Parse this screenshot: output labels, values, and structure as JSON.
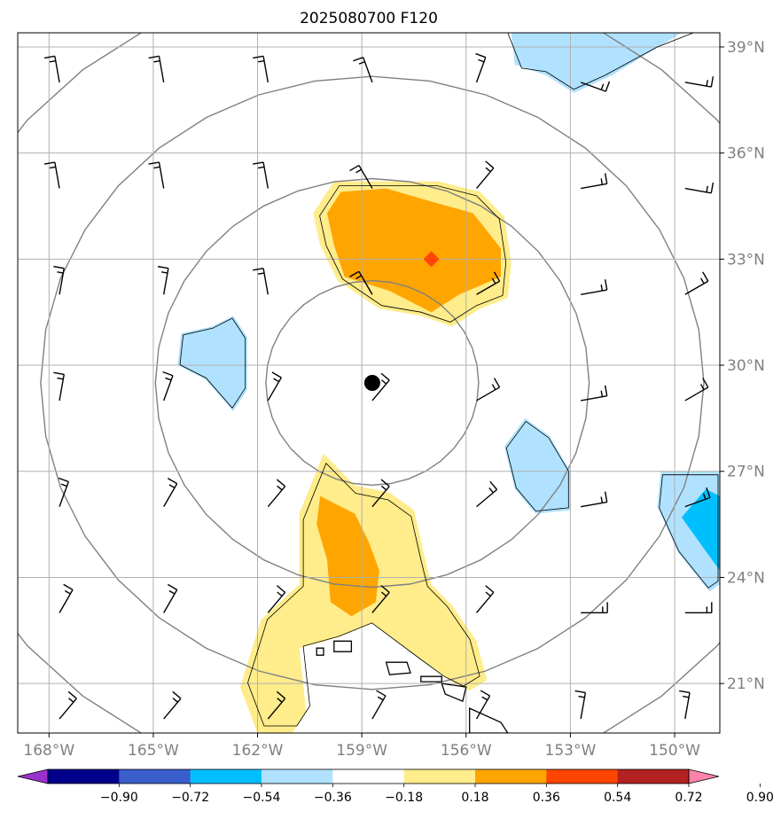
{
  "chart_data": {
    "type": "map-contour",
    "title": "2025080700 F120",
    "lon_range": [
      -168.9,
      -148.7
    ],
    "lat_range": [
      19.6,
      39.4
    ],
    "x_ticks": [
      {
        "lon": -168,
        "label": "168°W"
      },
      {
        "lon": -165,
        "label": "165°W"
      },
      {
        "lon": -162,
        "label": "162°W"
      },
      {
        "lon": -159,
        "label": "159°W"
      },
      {
        "lon": -156,
        "label": "156°W"
      },
      {
        "lon": -153,
        "label": "153°W"
      },
      {
        "lon": -150,
        "label": "150°W"
      }
    ],
    "y_ticks": [
      {
        "lat": 21,
        "label": "21°N"
      },
      {
        "lat": 24,
        "label": "24°N"
      },
      {
        "lat": 27,
        "label": "27°N"
      },
      {
        "lat": 30,
        "label": "30°N"
      },
      {
        "lat": 33,
        "label": "33°N"
      },
      {
        "lat": 36,
        "label": "36°N"
      },
      {
        "lat": 39,
        "label": "39°N"
      }
    ],
    "grid": true,
    "center_marker": {
      "lon": -158.7,
      "lat": 29.5
    },
    "max_marker": {
      "lon": -157.0,
      "lat": 33.0
    },
    "range_rings_deg": [
      3,
      6,
      9,
      12
    ],
    "colorbar": {
      "levels": [
        -0.9,
        -0.72,
        -0.54,
        -0.36,
        -0.18,
        0.18,
        0.36,
        0.54,
        0.72,
        0.9
      ],
      "labels": [
        "−0.90",
        "−0.72",
        "−0.54",
        "−0.36",
        "−0.18",
        "0.18",
        "0.36",
        "0.54",
        "0.72",
        "0.90"
      ],
      "colors": [
        "#9932cc",
        "#00008b",
        "#3a5fcd",
        "#00bfff",
        "#b0e2ff",
        "#ffffff",
        "#ffec8b",
        "#ffa500",
        "#ff4500",
        "#b22222",
        "#ff82ab"
      ],
      "extend": "both"
    },
    "filled_regions": [
      {
        "level": 0.18,
        "color": "#ffec8b",
        "polygon": [
          [
            -159.8,
            35.2
          ],
          [
            -156.8,
            35.2
          ],
          [
            -155.6,
            34.9
          ],
          [
            -154.9,
            34.2
          ],
          [
            -154.7,
            32.9
          ],
          [
            -154.8,
            31.9
          ],
          [
            -155.6,
            31.6
          ],
          [
            -156.4,
            31.1
          ],
          [
            -157.3,
            31.4
          ],
          [
            -158.5,
            31.6
          ],
          [
            -159.7,
            32.4
          ],
          [
            -160.2,
            33.4
          ],
          [
            -160.4,
            34.3
          ]
        ]
      },
      {
        "level": 0.36,
        "color": "#ffa500",
        "polygon": [
          [
            -159.6,
            34.9
          ],
          [
            -158.3,
            35.0
          ],
          [
            -156.9,
            34.6
          ],
          [
            -155.8,
            34.3
          ],
          [
            -155.0,
            33.3
          ],
          [
            -155.0,
            32.5
          ],
          [
            -156.2,
            32.0
          ],
          [
            -157.0,
            31.5
          ],
          [
            -158.2,
            32.1
          ],
          [
            -159.5,
            32.5
          ],
          [
            -159.8,
            33.4
          ],
          [
            -160.0,
            34.3
          ]
        ]
      },
      {
        "level": 0.18,
        "color": "#ffec8b",
        "polygon": [
          [
            -160.1,
            27.5
          ],
          [
            -159.2,
            26.6
          ],
          [
            -158.2,
            26.4
          ],
          [
            -157.5,
            25.9
          ],
          [
            -157.2,
            24.6
          ],
          [
            -157.0,
            23.8
          ],
          [
            -156.4,
            23.2
          ],
          [
            -155.7,
            22.2
          ],
          [
            -155.4,
            21.1
          ],
          [
            -155.9,
            20.8
          ],
          [
            -156.5,
            21.1
          ],
          [
            -157.2,
            21.6
          ],
          [
            -158.7,
            22.7
          ],
          [
            -159.7,
            22.3
          ],
          [
            -160.8,
            22.0
          ],
          [
            -160.6,
            20.2
          ],
          [
            -161.0,
            19.6
          ],
          [
            -162.0,
            19.6
          ],
          [
            -162.5,
            20.9
          ],
          [
            -161.9,
            22.8
          ],
          [
            -160.8,
            23.8
          ],
          [
            -160.8,
            25.8
          ]
        ]
      },
      {
        "level": 0.36,
        "color": "#ffa500",
        "polygon": [
          [
            -160.2,
            26.3
          ],
          [
            -159.2,
            25.8
          ],
          [
            -158.8,
            25.0
          ],
          [
            -158.5,
            24.2
          ],
          [
            -158.6,
            23.3
          ],
          [
            -159.3,
            22.9
          ],
          [
            -159.9,
            23.3
          ],
          [
            -160.0,
            24.5
          ],
          [
            -160.3,
            25.5
          ]
        ]
      },
      {
        "level": -0.36,
        "color": "#b0e2ff",
        "polygon": [
          [
            -163.3,
            31.1
          ],
          [
            -162.7,
            31.4
          ],
          [
            -162.3,
            30.8
          ],
          [
            -162.3,
            29.3
          ],
          [
            -162.7,
            28.7
          ],
          [
            -163.5,
            29.6
          ],
          [
            -164.3,
            30.0
          ],
          [
            -164.2,
            30.9
          ]
        ]
      },
      {
        "level": -0.36,
        "color": "#b0e2ff",
        "polygon": [
          [
            -154.3,
            28.5
          ],
          [
            -153.6,
            28.0
          ],
          [
            -153.0,
            27.0
          ],
          [
            -153.0,
            25.9
          ],
          [
            -154.0,
            25.8
          ],
          [
            -154.6,
            26.5
          ],
          [
            -154.9,
            27.7
          ]
        ]
      },
      {
        "level": -0.36,
        "color": "#b0e2ff",
        "polygon": [
          [
            -150.4,
            27.0
          ],
          [
            -148.7,
            27.0
          ],
          [
            -148.7,
            23.8
          ],
          [
            -149.0,
            23.6
          ],
          [
            -149.9,
            24.7
          ],
          [
            -150.5,
            26.0
          ]
        ]
      },
      {
        "level": -0.54,
        "color": "#00bfff",
        "polygon": [
          [
            -149.1,
            26.5
          ],
          [
            -148.7,
            26.3
          ],
          [
            -148.7,
            24.2
          ],
          [
            -149.0,
            24.6
          ],
          [
            -149.8,
            25.7
          ]
        ]
      },
      {
        "level": -0.36,
        "color": "#b0e2ff",
        "polygon": [
          [
            -154.7,
            39.4
          ],
          [
            -149.8,
            39.4
          ],
          [
            -150.8,
            38.8
          ],
          [
            -151.8,
            38.2
          ],
          [
            -152.9,
            37.7
          ],
          [
            -153.7,
            38.2
          ],
          [
            -154.6,
            38.5
          ]
        ]
      }
    ]
  }
}
